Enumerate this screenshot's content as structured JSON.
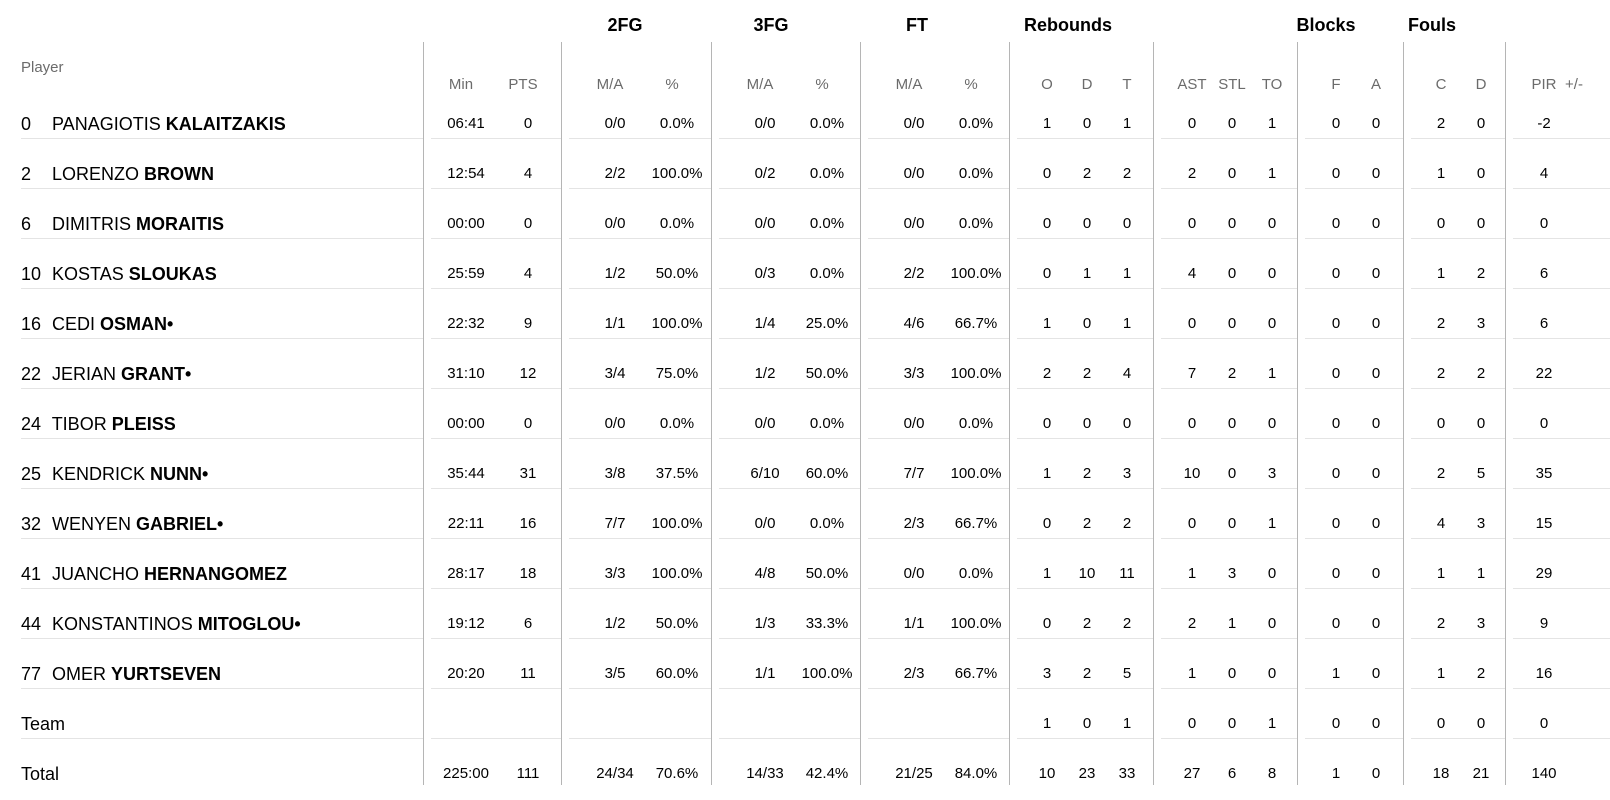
{
  "groups": {
    "fg2": "2FG",
    "fg3": "3FG",
    "ft": "FT",
    "rebounds": "Rebounds",
    "blocks": "Blocks",
    "fouls": "Fouls"
  },
  "headers": {
    "player": "Player",
    "min": "Min",
    "pts": "PTS",
    "fg2_ma": "M/A",
    "fg2_pct": "%",
    "fg3_ma": "M/A",
    "fg3_pct": "%",
    "ft_ma": "M/A",
    "ft_pct": "%",
    "o": "O",
    "d": "D",
    "t": "T",
    "ast": "AST",
    "stl": "STL",
    "to": "TO",
    "blk_f": "F",
    "blk_a": "A",
    "foul_c": "C",
    "foul_d": "D",
    "pir": "PIR",
    "pm": "+/-"
  },
  "rows": [
    {
      "num": "0",
      "first": "PANAGIOTIS",
      "last": "KALAITZAKIS",
      "starter": "",
      "min": "06:41",
      "pts": "0",
      "fg2_ma": "0/0",
      "fg2_pct": "0.0%",
      "fg3_ma": "0/0",
      "fg3_pct": "0.0%",
      "ft_ma": "0/0",
      "ft_pct": "0.0%",
      "o": "1",
      "d": "0",
      "t": "1",
      "ast": "0",
      "stl": "0",
      "to": "1",
      "blk_f": "0",
      "blk_a": "0",
      "foul_c": "2",
      "foul_d": "0",
      "pir": "-2"
    },
    {
      "num": "2",
      "first": "LORENZO",
      "last": "BROWN",
      "starter": "",
      "min": "12:54",
      "pts": "4",
      "fg2_ma": "2/2",
      "fg2_pct": "100.0%",
      "fg3_ma": "0/2",
      "fg3_pct": "0.0%",
      "ft_ma": "0/0",
      "ft_pct": "0.0%",
      "o": "0",
      "d": "2",
      "t": "2",
      "ast": "2",
      "stl": "0",
      "to": "1",
      "blk_f": "0",
      "blk_a": "0",
      "foul_c": "1",
      "foul_d": "0",
      "pir": "4"
    },
    {
      "num": "6",
      "first": "DIMITRIS",
      "last": "MORAITIS",
      "starter": "",
      "min": "00:00",
      "pts": "0",
      "fg2_ma": "0/0",
      "fg2_pct": "0.0%",
      "fg3_ma": "0/0",
      "fg3_pct": "0.0%",
      "ft_ma": "0/0",
      "ft_pct": "0.0%",
      "o": "0",
      "d": "0",
      "t": "0",
      "ast": "0",
      "stl": "0",
      "to": "0",
      "blk_f": "0",
      "blk_a": "0",
      "foul_c": "0",
      "foul_d": "0",
      "pir": "0"
    },
    {
      "num": "10",
      "first": "KOSTAS",
      "last": "SLOUKAS",
      "starter": "",
      "min": "25:59",
      "pts": "4",
      "fg2_ma": "1/2",
      "fg2_pct": "50.0%",
      "fg3_ma": "0/3",
      "fg3_pct": "0.0%",
      "ft_ma": "2/2",
      "ft_pct": "100.0%",
      "o": "0",
      "d": "1",
      "t": "1",
      "ast": "4",
      "stl": "0",
      "to": "0",
      "blk_f": "0",
      "blk_a": "0",
      "foul_c": "1",
      "foul_d": "2",
      "pir": "6"
    },
    {
      "num": "16",
      "first": "CEDI",
      "last": "OSMAN",
      "starter": "•",
      "min": "22:32",
      "pts": "9",
      "fg2_ma": "1/1",
      "fg2_pct": "100.0%",
      "fg3_ma": "1/4",
      "fg3_pct": "25.0%",
      "ft_ma": "4/6",
      "ft_pct": "66.7%",
      "o": "1",
      "d": "0",
      "t": "1",
      "ast": "0",
      "stl": "0",
      "to": "0",
      "blk_f": "0",
      "blk_a": "0",
      "foul_c": "2",
      "foul_d": "3",
      "pir": "6"
    },
    {
      "num": "22",
      "first": "JERIAN",
      "last": "GRANT",
      "starter": "•",
      "min": "31:10",
      "pts": "12",
      "fg2_ma": "3/4",
      "fg2_pct": "75.0%",
      "fg3_ma": "1/2",
      "fg3_pct": "50.0%",
      "ft_ma": "3/3",
      "ft_pct": "100.0%",
      "o": "2",
      "d": "2",
      "t": "4",
      "ast": "7",
      "stl": "2",
      "to": "1",
      "blk_f": "0",
      "blk_a": "0",
      "foul_c": "2",
      "foul_d": "2",
      "pir": "22"
    },
    {
      "num": "24",
      "first": "TIBOR",
      "last": "PLEISS",
      "starter": "",
      "min": "00:00",
      "pts": "0",
      "fg2_ma": "0/0",
      "fg2_pct": "0.0%",
      "fg3_ma": "0/0",
      "fg3_pct": "0.0%",
      "ft_ma": "0/0",
      "ft_pct": "0.0%",
      "o": "0",
      "d": "0",
      "t": "0",
      "ast": "0",
      "stl": "0",
      "to": "0",
      "blk_f": "0",
      "blk_a": "0",
      "foul_c": "0",
      "foul_d": "0",
      "pir": "0"
    },
    {
      "num": "25",
      "first": "KENDRICK",
      "last": "NUNN",
      "starter": "•",
      "min": "35:44",
      "pts": "31",
      "fg2_ma": "3/8",
      "fg2_pct": "37.5%",
      "fg3_ma": "6/10",
      "fg3_pct": "60.0%",
      "ft_ma": "7/7",
      "ft_pct": "100.0%",
      "o": "1",
      "d": "2",
      "t": "3",
      "ast": "10",
      "stl": "0",
      "to": "3",
      "blk_f": "0",
      "blk_a": "0",
      "foul_c": "2",
      "foul_d": "5",
      "pir": "35"
    },
    {
      "num": "32",
      "first": "WENYEN",
      "last": "GABRIEL",
      "starter": "•",
      "min": "22:11",
      "pts": "16",
      "fg2_ma": "7/7",
      "fg2_pct": "100.0%",
      "fg3_ma": "0/0",
      "fg3_pct": "0.0%",
      "ft_ma": "2/3",
      "ft_pct": "66.7%",
      "o": "0",
      "d": "2",
      "t": "2",
      "ast": "0",
      "stl": "0",
      "to": "1",
      "blk_f": "0",
      "blk_a": "0",
      "foul_c": "4",
      "foul_d": "3",
      "pir": "15"
    },
    {
      "num": "41",
      "first": "JUANCHO",
      "last": "HERNANGOMEZ",
      "starter": "",
      "min": "28:17",
      "pts": "18",
      "fg2_ma": "3/3",
      "fg2_pct": "100.0%",
      "fg3_ma": "4/8",
      "fg3_pct": "50.0%",
      "ft_ma": "0/0",
      "ft_pct": "0.0%",
      "o": "1",
      "d": "10",
      "t": "11",
      "ast": "1",
      "stl": "3",
      "to": "0",
      "blk_f": "0",
      "blk_a": "0",
      "foul_c": "1",
      "foul_d": "1",
      "pir": "29"
    },
    {
      "num": "44",
      "first": "KONSTANTINOS",
      "last": "MITOGLOU",
      "starter": "•",
      "min": "19:12",
      "pts": "6",
      "fg2_ma": "1/2",
      "fg2_pct": "50.0%",
      "fg3_ma": "1/3",
      "fg3_pct": "33.3%",
      "ft_ma": "1/1",
      "ft_pct": "100.0%",
      "o": "0",
      "d": "2",
      "t": "2",
      "ast": "2",
      "stl": "1",
      "to": "0",
      "blk_f": "0",
      "blk_a": "0",
      "foul_c": "2",
      "foul_d": "3",
      "pir": "9"
    },
    {
      "num": "77",
      "first": "OMER",
      "last": "YURTSEVEN",
      "starter": "",
      "min": "20:20",
      "pts": "11",
      "fg2_ma": "3/5",
      "fg2_pct": "60.0%",
      "fg3_ma": "1/1",
      "fg3_pct": "100.0%",
      "ft_ma": "2/3",
      "ft_pct": "66.7%",
      "o": "3",
      "d": "2",
      "t": "5",
      "ast": "1",
      "stl": "0",
      "to": "0",
      "blk_f": "1",
      "blk_a": "0",
      "foul_c": "1",
      "foul_d": "2",
      "pir": "16"
    }
  ],
  "team_row": {
    "label": "Team",
    "min": "",
    "pts": "",
    "fg2_ma": "",
    "fg2_pct": "",
    "fg3_ma": "",
    "fg3_pct": "",
    "ft_ma": "",
    "ft_pct": "",
    "o": "1",
    "d": "0",
    "t": "1",
    "ast": "0",
    "stl": "0",
    "to": "1",
    "blk_f": "0",
    "blk_a": "0",
    "foul_c": "0",
    "foul_d": "0",
    "pir": "0"
  },
  "total_row": {
    "label": "Total",
    "min": "225:00",
    "pts": "111",
    "fg2_ma": "24/34",
    "fg2_pct": "70.6%",
    "fg3_ma": "14/33",
    "fg3_pct": "42.4%",
    "ft_ma": "21/25",
    "ft_pct": "84.0%",
    "o": "10",
    "d": "23",
    "t": "33",
    "ast": "27",
    "stl": "6",
    "to": "8",
    "blk_f": "1",
    "blk_a": "0",
    "foul_c": "18",
    "foul_d": "21",
    "pir": "140"
  }
}
